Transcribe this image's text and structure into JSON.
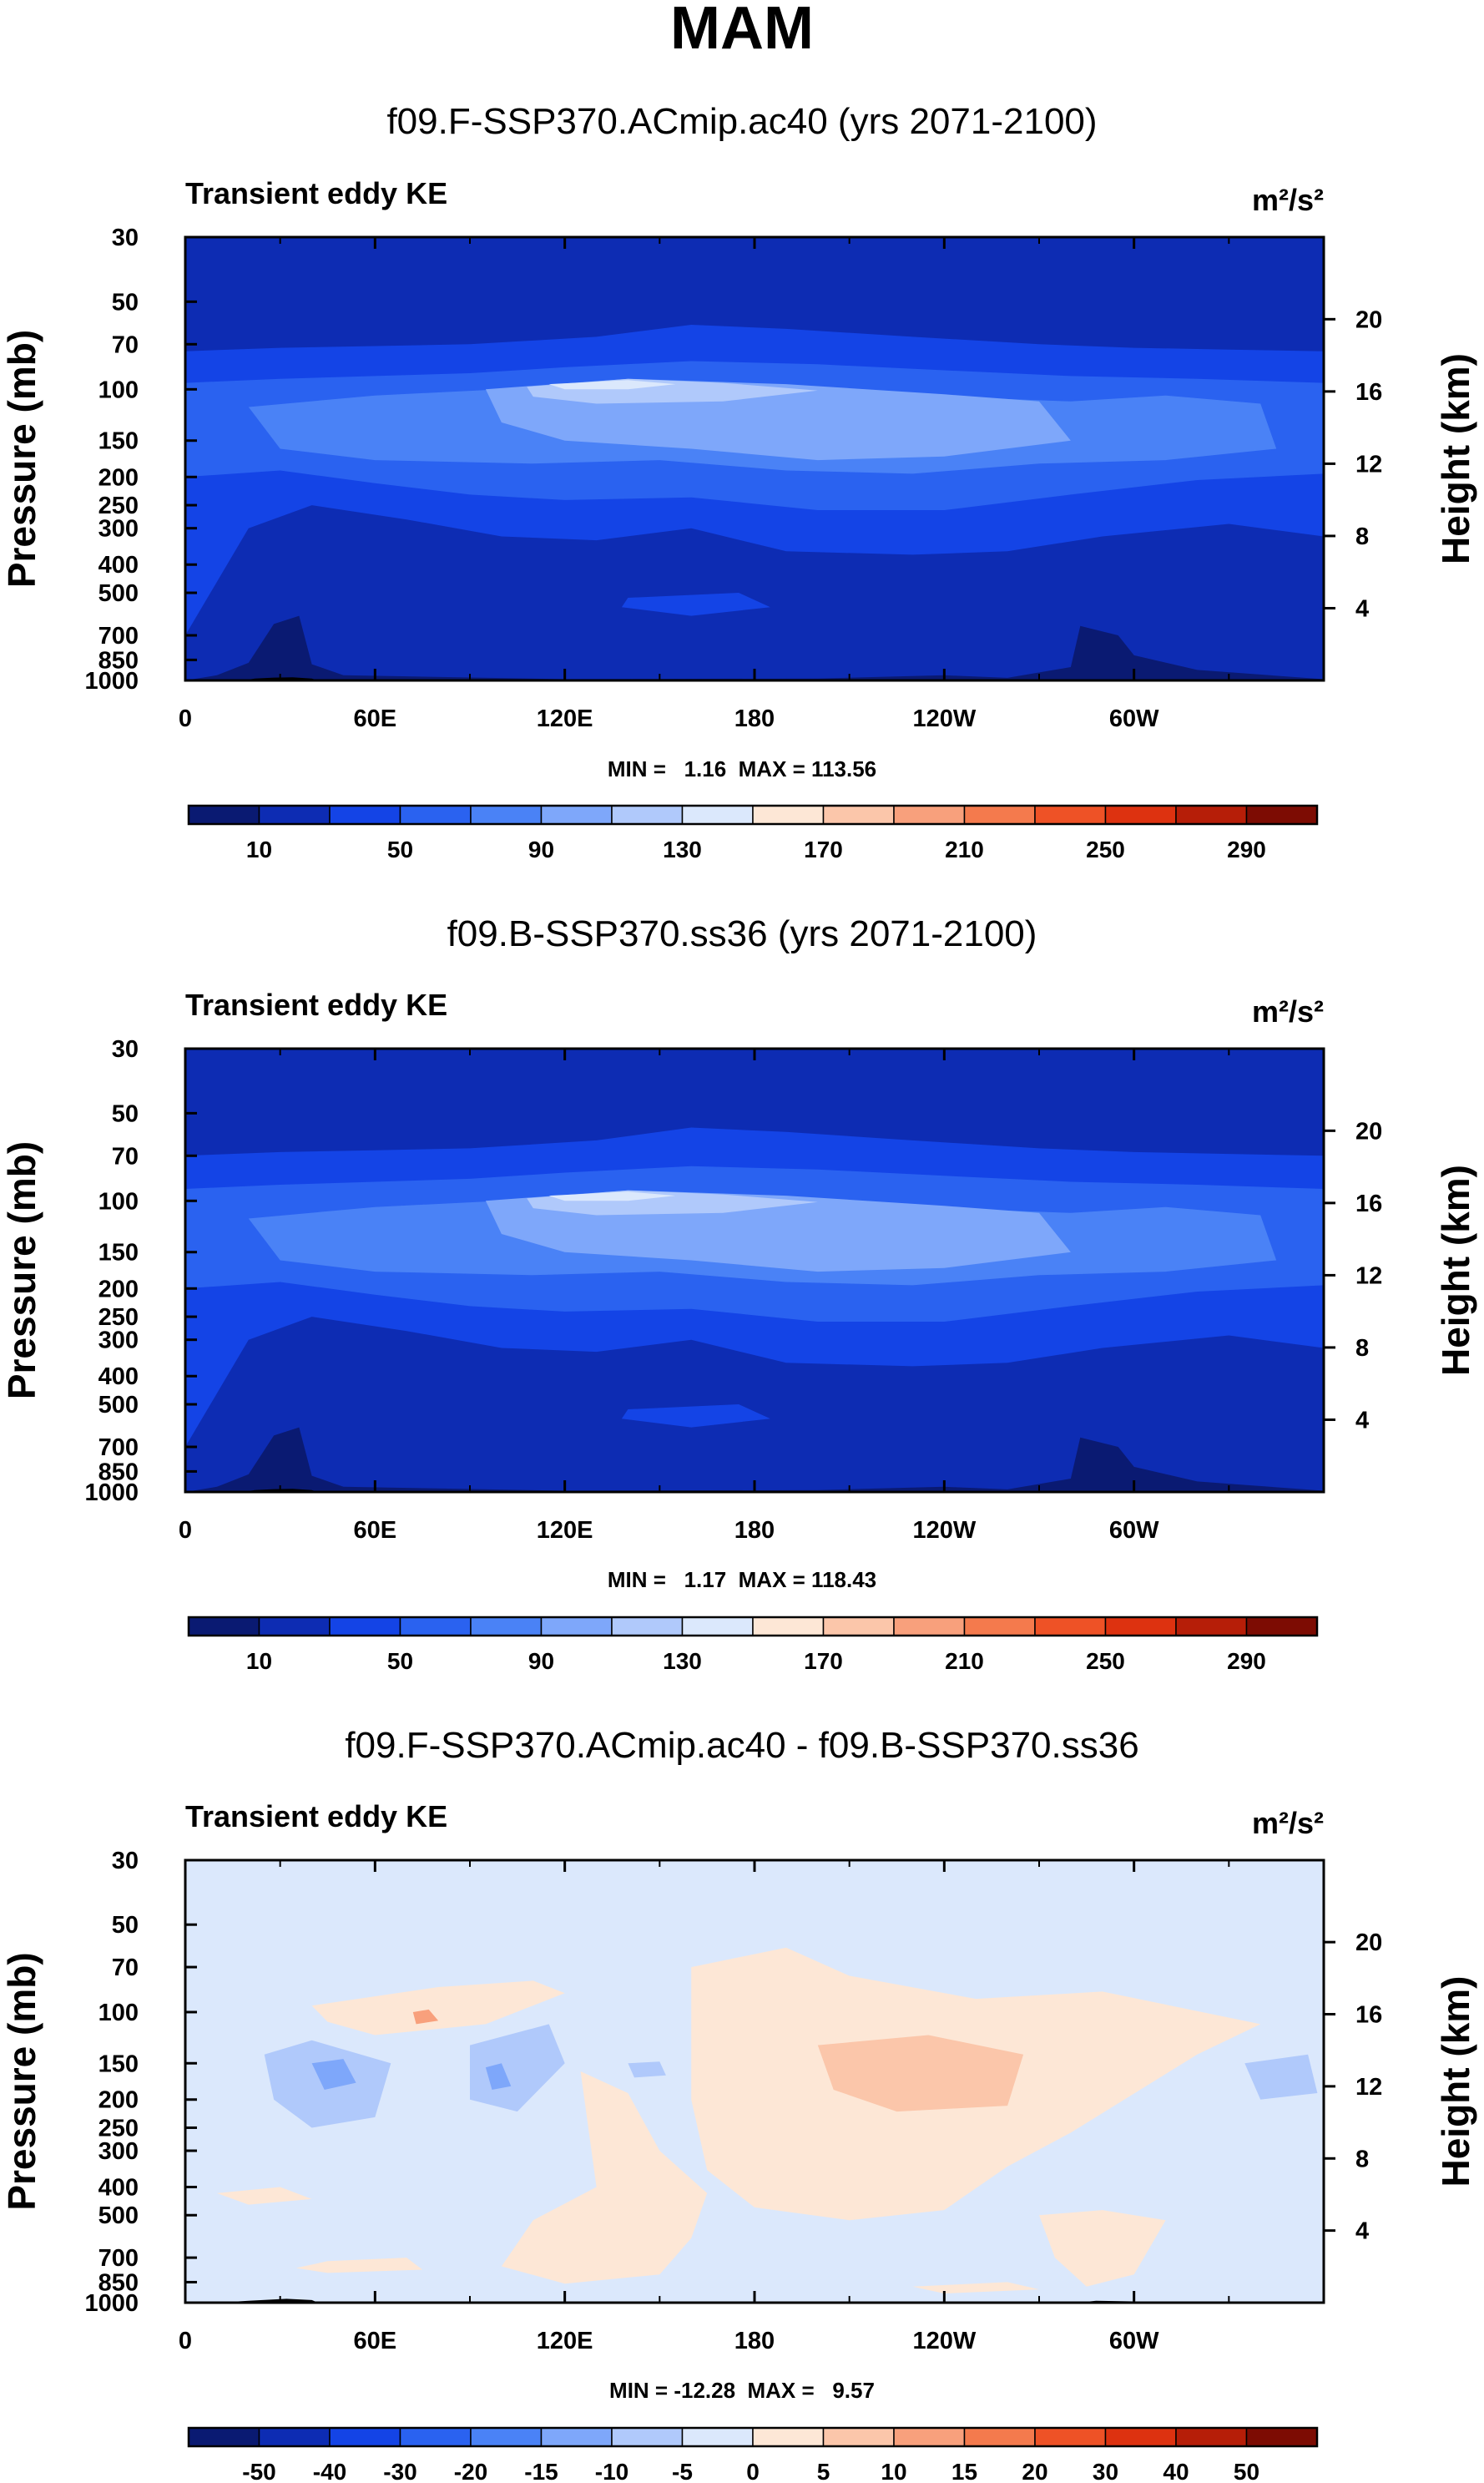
{
  "chart_data": {
    "type": "heatmap",
    "title": "MAM",
    "panels": [
      {
        "id": "p1",
        "subtitle": "f09.F-SSP370.ACmip.ac40 (yrs 2071-2100)",
        "variable": "Transient eddy KE",
        "units": "m²/s²",
        "ylabel_left": "Pressure (mb)",
        "ylabel_right": "Height (km)",
        "xticks": [
          "0",
          "60E",
          "120E",
          "180",
          "120W",
          "60W"
        ],
        "xtick_lon": [
          0,
          60,
          120,
          180,
          240,
          300
        ],
        "xlim": [
          0,
          360
        ],
        "pressure_ticks": [
          "30",
          "50",
          "70",
          "100",
          "150",
          "200",
          "250",
          "300",
          "400",
          "500",
          "700",
          "850",
          "1000"
        ],
        "pressure_values": [
          30,
          50,
          70,
          100,
          150,
          200,
          250,
          300,
          400,
          500,
          700,
          850,
          1000
        ],
        "height_ticks": [
          "20",
          "16",
          "12",
          "8",
          "4"
        ],
        "height_values": [
          20,
          16,
          12,
          8,
          4
        ],
        "stats": "MIN =   1.16  MAX = 113.56",
        "colorbar": {
          "labels": [
            "10",
            "50",
            "90",
            "130",
            "170",
            "210",
            "250",
            "290"
          ],
          "colors": [
            "#0a1a72",
            "#0d2cb3",
            "#1444e6",
            "#2a62f0",
            "#4a82f6",
            "#7ea7fa",
            "#b0c9fb",
            "#dbe8fc",
            "#fde7d6",
            "#fbc6aa",
            "#f8a07c",
            "#f47a4d",
            "#ee5226",
            "#dd3210",
            "#b61e08",
            "#7d0c03"
          ]
        }
      },
      {
        "id": "p2",
        "subtitle": "f09.B-SSP370.ss36 (yrs 2071-2100)",
        "variable": "Transient eddy KE",
        "units": "m²/s²",
        "ylabel_left": "Pressure (mb)",
        "ylabel_right": "Height (km)",
        "xticks": [
          "0",
          "60E",
          "120E",
          "180",
          "120W",
          "60W"
        ],
        "xtick_lon": [
          0,
          60,
          120,
          180,
          240,
          300
        ],
        "xlim": [
          0,
          360
        ],
        "pressure_ticks": [
          "30",
          "50",
          "70",
          "100",
          "150",
          "200",
          "250",
          "300",
          "400",
          "500",
          "700",
          "850",
          "1000"
        ],
        "pressure_values": [
          30,
          50,
          70,
          100,
          150,
          200,
          250,
          300,
          400,
          500,
          700,
          850,
          1000
        ],
        "height_ticks": [
          "20",
          "16",
          "12",
          "8",
          "4"
        ],
        "height_values": [
          20,
          16,
          12,
          8,
          4
        ],
        "stats": "MIN =   1.17  MAX = 118.43",
        "colorbar": {
          "labels": [
            "10",
            "50",
            "90",
            "130",
            "170",
            "210",
            "250",
            "290"
          ],
          "colors": [
            "#0a1a72",
            "#0d2cb3",
            "#1444e6",
            "#2a62f0",
            "#4a82f6",
            "#7ea7fa",
            "#b0c9fb",
            "#dbe8fc",
            "#fde7d6",
            "#fbc6aa",
            "#f8a07c",
            "#f47a4d",
            "#ee5226",
            "#dd3210",
            "#b61e08",
            "#7d0c03"
          ]
        }
      },
      {
        "id": "p3",
        "subtitle": "f09.F-SSP370.ACmip.ac40 - f09.B-SSP370.ss36",
        "variable": "Transient eddy KE",
        "units": "m²/s²",
        "ylabel_left": "Pressure (mb)",
        "ylabel_right": "Height (km)",
        "xticks": [
          "0",
          "60E",
          "120E",
          "180",
          "120W",
          "60W"
        ],
        "xtick_lon": [
          0,
          60,
          120,
          180,
          240,
          300
        ],
        "xlim": [
          0,
          360
        ],
        "pressure_ticks": [
          "30",
          "50",
          "70",
          "100",
          "150",
          "200",
          "250",
          "300",
          "400",
          "500",
          "700",
          "850",
          "1000"
        ],
        "pressure_values": [
          30,
          50,
          70,
          100,
          150,
          200,
          250,
          300,
          400,
          500,
          700,
          850,
          1000
        ],
        "height_ticks": [
          "20",
          "16",
          "12",
          "8",
          "4"
        ],
        "height_values": [
          20,
          16,
          12,
          8,
          4
        ],
        "stats": "MIN = -12.28  MAX =   9.57",
        "colorbar": {
          "labels": [
            "-50",
            "-40",
            "-30",
            "-20",
            "-15",
            "-10",
            "-5",
            "0",
            "5",
            "10",
            "15",
            "20",
            "30",
            "40",
            "50"
          ],
          "colors": [
            "#0a1a72",
            "#0d2cb3",
            "#1444e6",
            "#2a62f0",
            "#4a82f6",
            "#7ea7fa",
            "#b0c9fb",
            "#dbe8fc",
            "#fde7d6",
            "#fbc6aa",
            "#f8a07c",
            "#f47a4d",
            "#ee5226",
            "#dd3210",
            "#b61e08",
            "#7d0c03"
          ]
        }
      }
    ]
  }
}
